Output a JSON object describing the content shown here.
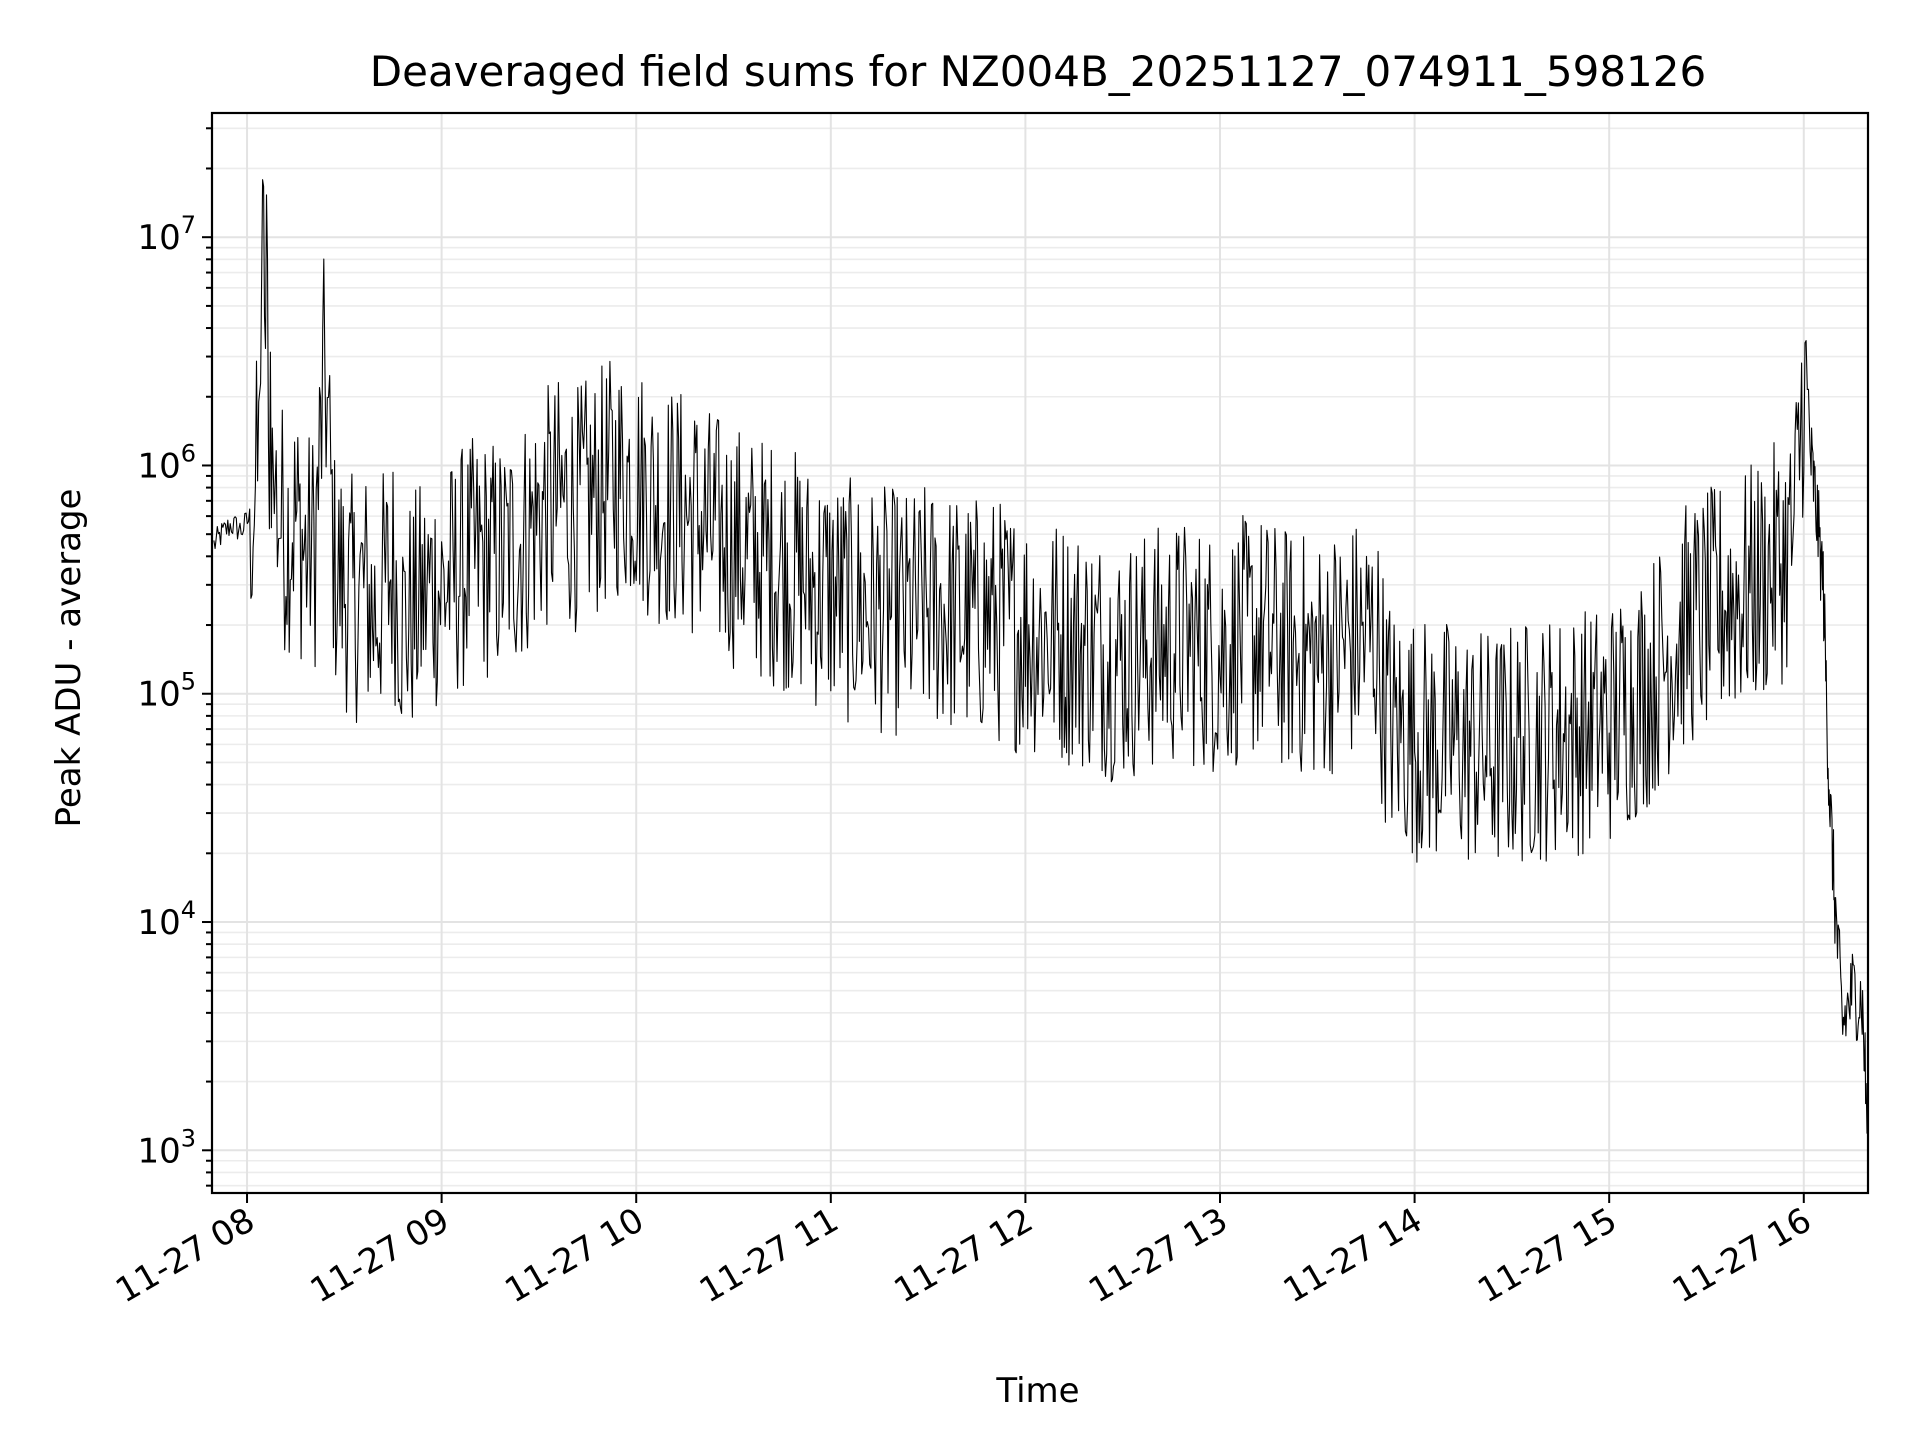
{
  "chart_data": {
    "type": "line",
    "title": "Deaveraged field sums for NZ004B_20251127_074911_598126",
    "xlabel": "Time",
    "ylabel": "Peak ADU - average",
    "yscale": "log",
    "ylim": [
      650,
      35000000
    ],
    "xlim_hours": [
      7.82,
      16.33
    ],
    "x_ticks": [
      {
        "hour": 8,
        "label": "11-27 08"
      },
      {
        "hour": 9,
        "label": "11-27 09"
      },
      {
        "hour": 10,
        "label": "11-27 10"
      },
      {
        "hour": 11,
        "label": "11-27 11"
      },
      {
        "hour": 12,
        "label": "11-27 12"
      },
      {
        "hour": 13,
        "label": "11-27 13"
      },
      {
        "hour": 14,
        "label": "11-27 14"
      },
      {
        "hour": 15,
        "label": "11-27 15"
      },
      {
        "hour": 16,
        "label": "11-27 16"
      }
    ],
    "y_ticks": [
      {
        "value": 1000,
        "base": "10",
        "exp": "3"
      },
      {
        "value": 10000,
        "base": "10",
        "exp": "4"
      },
      {
        "value": 100000,
        "base": "10",
        "exp": "5"
      },
      {
        "value": 1000000,
        "base": "10",
        "exp": "6"
      },
      {
        "value": 10000000,
        "base": "10",
        "exp": "7"
      }
    ],
    "series": [
      {
        "name": "Peak ADU - average",
        "color": "#000000",
        "hours": [
          7.83,
          7.87,
          7.92,
          7.97,
          8.02,
          8.06,
          8.08,
          8.09,
          8.1,
          8.11,
          8.12,
          8.13,
          8.15,
          8.2,
          8.25,
          8.3,
          8.35,
          8.4,
          8.45,
          8.5,
          8.55,
          8.6,
          8.65,
          8.7,
          8.75,
          8.8,
          8.85,
          8.9,
          8.95,
          9.0,
          9.1,
          9.2,
          9.3,
          9.4,
          9.5,
          9.6,
          9.7,
          9.8,
          9.9,
          10.0,
          10.1,
          10.2,
          10.3,
          10.4,
          10.5,
          10.6,
          10.7,
          10.8,
          10.9,
          11.0,
          11.1,
          11.2,
          11.3,
          11.4,
          11.5,
          11.6,
          11.7,
          11.8,
          11.9,
          12.0,
          12.1,
          12.2,
          12.3,
          12.4,
          12.5,
          12.6,
          12.7,
          12.8,
          12.9,
          13.0,
          13.1,
          13.2,
          13.3,
          13.4,
          13.5,
          13.6,
          13.7,
          13.8,
          13.85,
          13.9,
          14.0,
          14.1,
          14.2,
          14.3,
          14.4,
          14.5,
          14.6,
          14.7,
          14.8,
          14.9,
          15.0,
          15.1,
          15.2,
          15.3,
          15.4,
          15.5,
          15.6,
          15.7,
          15.8,
          15.9,
          15.95,
          16.0,
          16.03,
          16.06,
          16.1,
          16.13,
          16.16,
          16.2,
          16.25,
          16.3,
          16.33
        ],
        "values": [
          450000,
          500000,
          550000,
          520000,
          600000,
          1000000,
          21000000,
          2000000,
          14000000,
          800000,
          2500000,
          900000,
          700000,
          500000,
          600000,
          400000,
          450000,
          2800000,
          350000,
          300000,
          250000,
          300000,
          220000,
          280000,
          350000,
          200000,
          220000,
          250000,
          300000,
          280000,
          350000,
          400000,
          380000,
          450000,
          600000,
          700000,
          650000,
          750000,
          900000,
          850000,
          700000,
          650000,
          600000,
          500000,
          450000,
          400000,
          380000,
          350000,
          300000,
          280000,
          250000,
          240000,
          230000,
          220000,
          240000,
          230000,
          210000,
          220000,
          200000,
          190000,
          180000,
          170000,
          160000,
          150000,
          140000,
          150000,
          160000,
          170000,
          160000,
          150000,
          170000,
          180000,
          160000,
          150000,
          140000,
          160000,
          170000,
          180000,
          90000,
          70000,
          65000,
          60000,
          62000,
          58000,
          55000,
          60000,
          62000,
          65000,
          68000,
          70000,
          75000,
          90000,
          110000,
          150000,
          200000,
          220000,
          260000,
          280000,
          320000,
          400000,
          500000,
          2400000,
          1200000,
          700000,
          300000,
          40000,
          12000,
          3500,
          5000,
          4500,
          1100
        ]
      }
    ]
  }
}
